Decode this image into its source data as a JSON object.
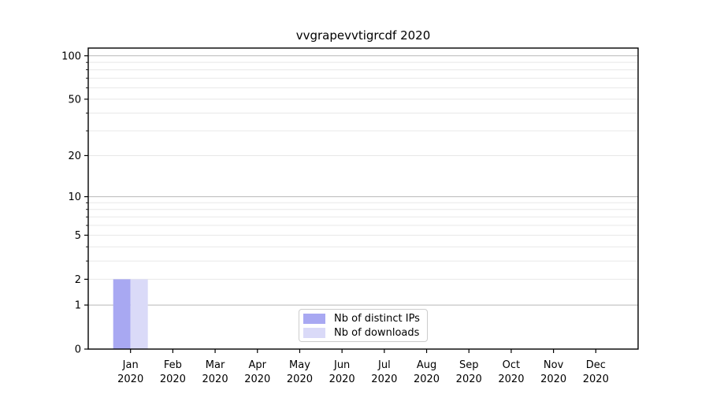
{
  "background_color": "#ffffff",
  "chart_data": {
    "type": "bar",
    "title": "vvgrapevvtigrcdf 2020",
    "categories": [
      "Jan 2020",
      "Feb 2020",
      "Mar 2020",
      "Apr 2020",
      "May 2020",
      "Jun 2020",
      "Jul 2020",
      "Aug 2020",
      "Sep 2020",
      "Oct 2020",
      "Nov 2020",
      "Dec 2020"
    ],
    "x_tick_months": [
      "Jan",
      "Feb",
      "Mar",
      "Apr",
      "May",
      "Jun",
      "Jul",
      "Aug",
      "Sep",
      "Oct",
      "Nov",
      "Dec"
    ],
    "x_tick_year": "2020",
    "series": [
      {
        "name": "Nb of distinct IPs",
        "color": "#a8a8f2",
        "values": [
          2,
          0,
          0,
          0,
          0,
          0,
          0,
          0,
          0,
          0,
          0,
          0
        ]
      },
      {
        "name": "Nb of downloads",
        "color": "#dadaf8",
        "values": [
          2,
          0,
          0,
          0,
          0,
          0,
          0,
          0,
          0,
          0,
          0,
          0
        ]
      }
    ],
    "xlabel": "",
    "ylabel": "",
    "yscale": "log1p",
    "ylim": [
      0,
      113
    ],
    "y_tick_labels": [
      0,
      1,
      2,
      5,
      10,
      20,
      50,
      100
    ],
    "y_major_gridlines": [
      1,
      10,
      100
    ],
    "y_minor_gridlines": [
      2,
      3,
      4,
      5,
      6,
      7,
      8,
      9,
      20,
      30,
      40,
      50,
      60,
      70,
      80,
      90
    ],
    "y_minor_ticks": [
      3,
      4,
      6,
      7,
      8,
      9,
      30,
      40,
      60,
      70,
      80,
      90
    ],
    "grid": "horizontal",
    "legend_position": "lower center inside",
    "colors": {
      "grid_major": "#b8b8b8",
      "grid_minor": "#e8e8e8",
      "spine": "#000000",
      "text": "#000000",
      "legend_border": "#cccccc"
    }
  }
}
